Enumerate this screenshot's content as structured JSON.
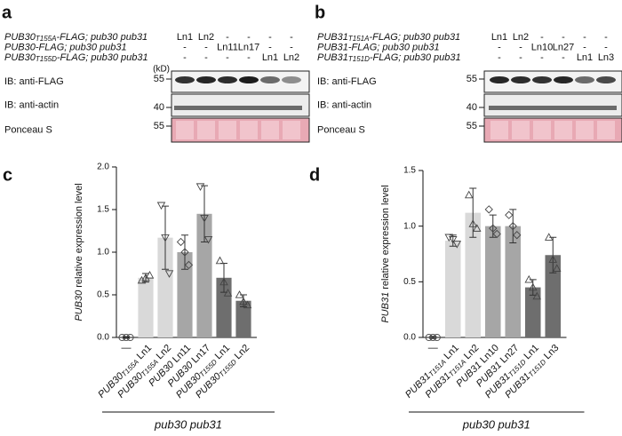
{
  "panels": [
    {
      "letter": "a",
      "genotypes": [
        {
          "gene": "PUB30",
          "sub": "T155A",
          "rest": "-FLAG; pub30 pub31",
          "lanes": [
            "Ln1",
            "Ln2",
            "-",
            "-",
            "-",
            "-"
          ]
        },
        {
          "gene": "PUB30",
          "sub": "",
          "rest": "-FLAG; pub30 pub31",
          "lanes": [
            "-",
            "-",
            "Ln11",
            "Ln17",
            "-",
            "-"
          ]
        },
        {
          "gene": "PUB30",
          "sub": "T155D",
          "rest": "-FLAG; pub30 pub31",
          "lanes": [
            "-",
            "-",
            "-",
            "-",
            "Ln1",
            "Ln2"
          ]
        }
      ],
      "kd": "(kD)",
      "blots": [
        {
          "label": "IB: anti-FLAG",
          "marker": "55"
        },
        {
          "label": "IB: anti-actin",
          "marker": "40"
        },
        {
          "label": "Ponceau S",
          "marker": "55"
        }
      ]
    },
    {
      "letter": "b",
      "genotypes": [
        {
          "gene": "PUB31",
          "sub": "T151A",
          "rest": "-FLAG; pub30 pub31",
          "lanes": [
            "Ln1",
            "Ln2",
            "-",
            "-",
            "-",
            "-"
          ]
        },
        {
          "gene": "PUB31",
          "sub": "",
          "rest": "-FLAG; pub30 pub31",
          "lanes": [
            "-",
            "-",
            "Ln10",
            "Ln27",
            "-",
            "-"
          ]
        },
        {
          "gene": "PUB31",
          "sub": "T151D",
          "rest": "-FLAG; pub30 pub31",
          "lanes": [
            "-",
            "-",
            "-",
            "-",
            "Ln1",
            "Ln3"
          ]
        }
      ],
      "blots": [
        {
          "label": "IB: anti-FLAG",
          "marker": "55"
        },
        {
          "label": "IB: anti-actin",
          "marker": "40"
        },
        {
          "label": "Ponceau S",
          "marker": "55"
        }
      ]
    }
  ],
  "chart_data": [
    {
      "letter": "c",
      "type": "bar",
      "ylabel_gene": "PUB30",
      "ylabel_rest": " relative expression level",
      "categories": [
        {
          "line": "—"
        },
        {
          "gene": "PUB30",
          "sub": "T155A",
          "line": " Ln1"
        },
        {
          "gene": "PUB30",
          "sub": "T155A",
          "line": " Ln2"
        },
        {
          "gene": "PUB30",
          "sub": "",
          "line": " Ln11"
        },
        {
          "gene": "PUB30",
          "sub": "",
          "line": " Ln17"
        },
        {
          "gene": "PUB30",
          "sub": "T155D",
          "line": " Ln1"
        },
        {
          "gene": "PUB30",
          "sub": "T155D",
          "line": " Ln2"
        }
      ],
      "values": [
        0.0,
        0.7,
        1.17,
        1.0,
        1.45,
        0.7,
        0.43
      ],
      "errors": [
        0.01,
        0.05,
        0.37,
        0.2,
        0.33,
        0.17,
        0.07
      ],
      "points": [
        [
          0.0,
          0.0,
          0.0
        ],
        [
          0.67,
          0.7,
          0.73
        ],
        [
          1.55,
          1.17,
          0.75
        ],
        [
          1.12,
          1.0,
          0.85
        ],
        [
          1.77,
          1.4,
          1.15
        ],
        [
          0.9,
          0.65,
          0.52
        ],
        [
          0.5,
          0.42,
          0.38
        ]
      ],
      "markers": [
        "circle",
        "triangle",
        "triangle-down",
        "diamond",
        "triangle-down",
        "triangle",
        "triangle"
      ],
      "colors": [
        "#ffffff",
        "#d9d9d9",
        "#d9d9d9",
        "#a6a6a6",
        "#a6a6a6",
        "#6e6e6e",
        "#6e6e6e"
      ],
      "ylim": [
        0,
        2.0
      ],
      "yticks": [
        {
          "value": 0,
          "label": "0.0"
        },
        {
          "value": 0.5,
          "label": "0.5"
        },
        {
          "value": 1,
          "label": "1.0"
        },
        {
          "value": 1.5,
          "label": "1.5"
        },
        {
          "value": 2,
          "label": "2.0"
        }
      ],
      "group_label": "pub30 pub31"
    },
    {
      "letter": "d",
      "type": "bar",
      "ylabel_gene": "PUB31",
      "ylabel_rest": " relative expression level",
      "categories": [
        {
          "line": "—"
        },
        {
          "gene": "PUB31",
          "sub": "T151A",
          "line": " Ln1"
        },
        {
          "gene": "PUB31",
          "sub": "T151A",
          "line": " Ln2"
        },
        {
          "gene": "PUB31",
          "sub": "",
          "line": " Ln10"
        },
        {
          "gene": "PUB31",
          "sub": "",
          "line": " Ln27"
        },
        {
          "gene": "PUB31",
          "sub": "T151D",
          "line": " Ln1"
        },
        {
          "gene": "PUB31",
          "sub": "T151D",
          "line": " Ln3"
        }
      ],
      "values": [
        0.0,
        0.87,
        1.12,
        1.0,
        1.0,
        0.45,
        0.74
      ],
      "errors": [
        0.01,
        0.05,
        0.22,
        0.1,
        0.15,
        0.07,
        0.16
      ],
      "points": [
        [
          0.0,
          0.0,
          0.0
        ],
        [
          0.9,
          0.88,
          0.84
        ],
        [
          1.28,
          1.02,
          0.98
        ],
        [
          1.15,
          0.98,
          0.93
        ],
        [
          1.1,
          1.0,
          0.92
        ],
        [
          0.52,
          0.45,
          0.37
        ],
        [
          0.9,
          0.7,
          0.62
        ]
      ],
      "markers": [
        "circle",
        "triangle-down",
        "triangle",
        "diamond",
        "diamond",
        "triangle",
        "triangle"
      ],
      "colors": [
        "#ffffff",
        "#d9d9d9",
        "#d9d9d9",
        "#a6a6a6",
        "#a6a6a6",
        "#6e6e6e",
        "#6e6e6e"
      ],
      "ylim": [
        0,
        1.5
      ],
      "yticks": [
        {
          "value": 0,
          "label": "0.0"
        },
        {
          "value": 0.5,
          "label": "0.5"
        },
        {
          "value": 1,
          "label": "1.0"
        },
        {
          "value": 1.5,
          "label": "1.5"
        }
      ],
      "group_label": "pub30 pub31"
    }
  ]
}
